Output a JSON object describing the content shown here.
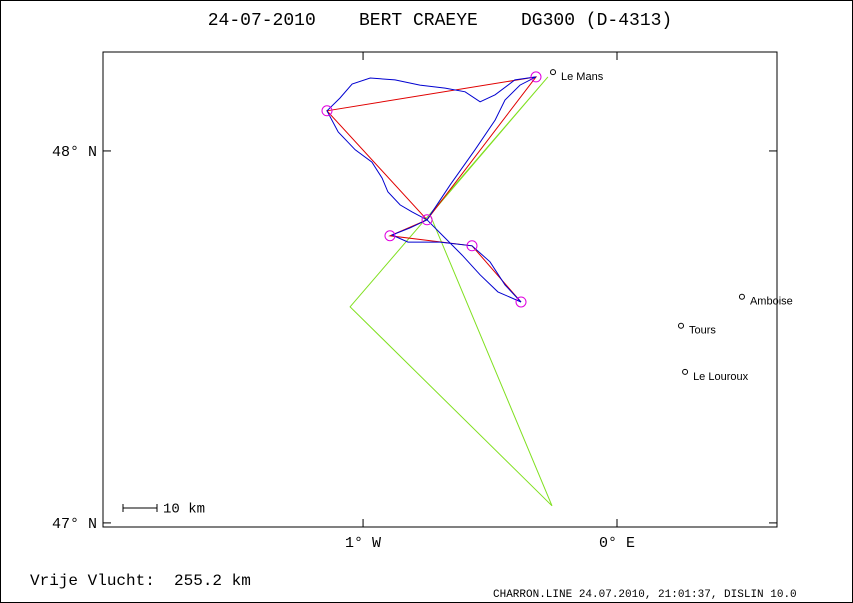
{
  "chart_data": {
    "type": "track",
    "title": "24-07-2010    BERT CRAEYE    DG300 (D-4313)",
    "footer": "Vrije Vlucht:  255.2 km",
    "credit": "CHARRON.LINE 24.07.2010, 21:01:37, DISLIN 10.0",
    "scale_label": "10 km",
    "xlim": [
      -2.024,
      0.63
    ],
    "ylim": [
      46.989,
      48.266
    ],
    "xticks": [
      {
        "value": -1,
        "label": "1° W"
      },
      {
        "value": 0,
        "label": "0° E"
      }
    ],
    "yticks": [
      {
        "value": 47,
        "label": "47° N"
      },
      {
        "value": 48,
        "label": "48° N"
      }
    ],
    "track": {
      "color": "#0000d0",
      "lon": [
        -0.748,
        -0.657,
        -0.559,
        -0.48,
        -0.441,
        -0.382,
        -0.319,
        -0.402,
        -0.48,
        -0.539,
        -0.598,
        -0.677,
        -0.776,
        -0.874,
        -0.972,
        -1.043,
        -1.091,
        -1.142,
        -1.098,
        -1.031,
        -0.965,
        -0.925,
        -0.902,
        -0.854,
        -0.807,
        -0.748,
        -0.815,
        -0.886,
        -0.823,
        -0.697,
        -0.571,
        -0.5,
        -0.441,
        -0.378,
        -0.469,
        -0.539,
        -0.61,
        -0.677,
        -0.748
      ],
      "lat": [
        47.815,
        47.909,
        48.003,
        48.083,
        48.137,
        48.177,
        48.199,
        48.191,
        48.151,
        48.132,
        48.159,
        48.169,
        48.177,
        48.191,
        48.196,
        48.18,
        48.142,
        48.108,
        48.051,
        48.003,
        47.97,
        47.927,
        47.89,
        47.855,
        47.836,
        47.815,
        47.793,
        47.774,
        47.755,
        47.755,
        47.745,
        47.702,
        47.64,
        47.594,
        47.621,
        47.667,
        47.72,
        47.766,
        47.815
      ]
    },
    "task": {
      "color": "#e00000",
      "lon": [
        -0.748,
        -0.319,
        -1.142,
        -0.748,
        -0.894,
        -0.571,
        -0.378
      ],
      "lat": [
        47.815,
        48.199,
        48.108,
        47.815,
        47.772,
        47.745,
        47.594
      ]
    },
    "turnpoints": {
      "color": "#e000e0",
      "lon": [
        -0.319,
        -1.142,
        -0.748,
        -0.894,
        -0.571,
        -0.378
      ],
      "lat": [
        48.199,
        48.108,
        47.815,
        47.772,
        47.745,
        47.594
      ]
    },
    "zone": {
      "color": "#80e020",
      "lon": [
        -0.272,
        -1.051,
        -0.256,
        -0.736
      ],
      "lat": [
        48.199,
        47.581,
        47.046,
        47.828
      ]
    },
    "places": [
      {
        "name": "Le Mans",
        "lon": -0.252,
        "lat": 48.212
      },
      {
        "name": "Amboise",
        "lon": 0.492,
        "lat": 47.608
      },
      {
        "name": "Tours",
        "lon": 0.252,
        "lat": 47.53
      },
      {
        "name": "Le Louroux",
        "lon": 0.268,
        "lat": 47.406
      }
    ]
  }
}
